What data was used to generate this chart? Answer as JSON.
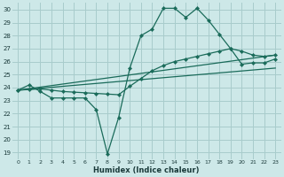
{
  "xlabel": "Humidex (Indice chaleur)",
  "bg_color": "#cde8e8",
  "grid_color": "#a8cccc",
  "line_color": "#1a6b5a",
  "xlim": [
    -0.5,
    23.5
  ],
  "ylim": [
    18.5,
    30.5
  ],
  "xticks": [
    0,
    1,
    2,
    3,
    4,
    5,
    6,
    7,
    8,
    9,
    10,
    11,
    12,
    13,
    14,
    15,
    16,
    17,
    18,
    19,
    20,
    21,
    22,
    23
  ],
  "yticks": [
    19,
    20,
    21,
    22,
    23,
    24,
    25,
    26,
    27,
    28,
    29,
    30
  ],
  "line1_x": [
    0,
    1,
    2,
    3,
    4,
    5,
    6,
    7,
    8,
    9,
    10,
    11,
    12,
    13,
    14,
    15,
    16,
    17,
    18,
    19,
    20,
    21,
    22,
    23
  ],
  "line1_y": [
    23.8,
    24.2,
    23.7,
    23.2,
    23.2,
    23.2,
    23.2,
    22.3,
    18.9,
    21.7,
    25.5,
    28.0,
    28.5,
    30.1,
    30.1,
    29.4,
    30.1,
    29.2,
    28.1,
    27.0,
    25.8,
    25.9,
    25.9,
    26.2
  ],
  "line2_x": [
    0,
    1,
    2,
    3,
    4,
    5,
    6,
    7,
    8,
    9,
    10,
    11,
    12,
    13,
    14,
    15,
    16,
    17,
    18,
    19,
    20,
    21,
    22,
    23
  ],
  "line2_y": [
    23.8,
    23.85,
    23.9,
    23.8,
    23.7,
    23.65,
    23.6,
    23.55,
    23.5,
    23.45,
    24.1,
    24.7,
    25.3,
    25.7,
    26.0,
    26.2,
    26.4,
    26.6,
    26.8,
    27.0,
    26.8,
    26.5,
    26.4,
    26.5
  ],
  "line3_x": [
    0,
    23
  ],
  "line3_y": [
    23.8,
    26.5
  ],
  "line4_x": [
    0,
    23
  ],
  "line4_y": [
    23.8,
    25.5
  ]
}
